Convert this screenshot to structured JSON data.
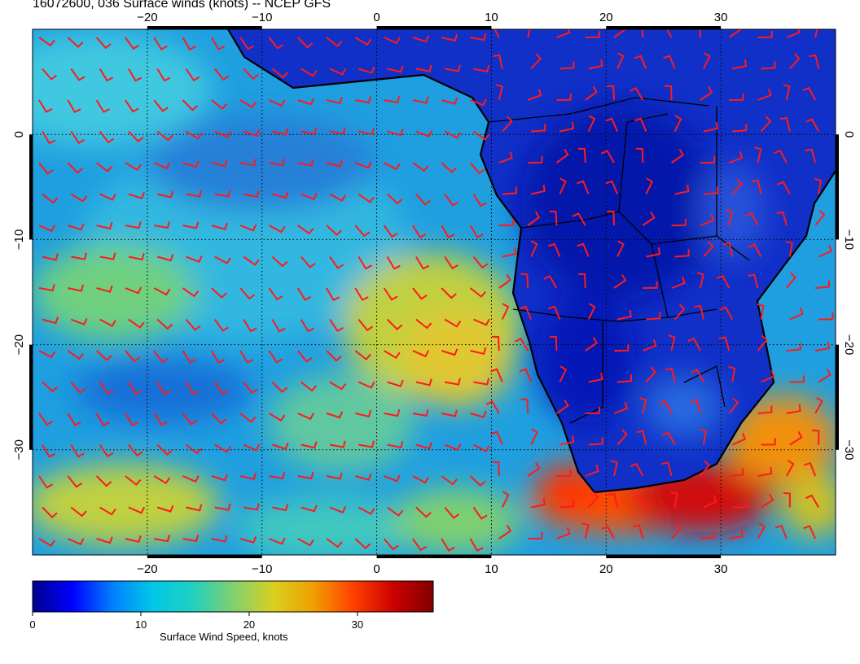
{
  "title": "16072600, 036 Surface winds (knots) -- NCEP GFS",
  "map": {
    "lon_range": [
      -30,
      40
    ],
    "lat_range": [
      -40,
      10
    ],
    "lon_ticks": [
      {
        "value": -20,
        "label": "−20"
      },
      {
        "value": -10,
        "label": "−10"
      },
      {
        "value": 0,
        "label": "0"
      },
      {
        "value": 10,
        "label": "10"
      },
      {
        "value": 20,
        "label": "20"
      },
      {
        "value": 30,
        "label": "30"
      }
    ],
    "lat_ticks": [
      {
        "value": 0,
        "label": "0"
      },
      {
        "value": -10,
        "label": "−10"
      },
      {
        "value": -20,
        "label": "−20"
      },
      {
        "value": -30,
        "label": "−30"
      }
    ],
    "barb_color": "#ff1a1a",
    "coast_color": "#000000",
    "grid_style": "dotted"
  },
  "colorbar": {
    "label": "Surface Wind Speed, knots",
    "range": [
      0,
      37
    ],
    "ticks": [
      {
        "value": 0,
        "label": "0"
      },
      {
        "value": 10,
        "label": "10"
      },
      {
        "value": 20,
        "label": "20"
      },
      {
        "value": 30,
        "label": "30"
      }
    ],
    "colors": [
      "#00008f",
      "#0000ff",
      "#0080ff",
      "#00c8e6",
      "#20d0c0",
      "#80d070",
      "#d8d020",
      "#f0a000",
      "#ff4000",
      "#cc0000",
      "#800000"
    ]
  }
}
